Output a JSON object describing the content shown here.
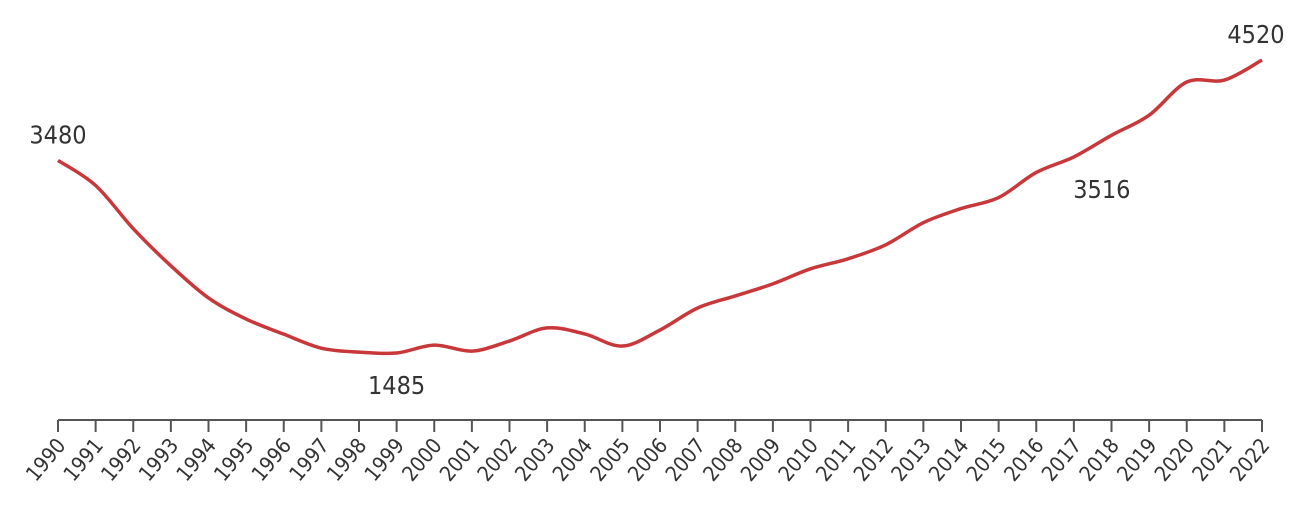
{
  "chart_data": {
    "type": "line",
    "x": [
      1990,
      1991,
      1992,
      1993,
      1994,
      1995,
      1996,
      1997,
      1998,
      1999,
      2000,
      2001,
      2002,
      2003,
      2004,
      2005,
      2006,
      2007,
      2008,
      2009,
      2010,
      2011,
      2012,
      2013,
      2014,
      2015,
      2016,
      2017,
      2018,
      2019,
      2020,
      2021,
      2022
    ],
    "values": [
      3480,
      3220,
      2773,
      2388,
      2055,
      1837,
      1680,
      1535,
      1494,
      1485,
      1567,
      1505,
      1609,
      1745,
      1682,
      1557,
      1723,
      1951,
      2076,
      2201,
      2357,
      2461,
      2606,
      2835,
      2981,
      3095,
      3355,
      3516,
      3740,
      3948,
      4292,
      4312,
      4520
    ],
    "value_labels": [
      "3480",
      null,
      null,
      null,
      null,
      null,
      null,
      null,
      null,
      "1485",
      null,
      null,
      null,
      null,
      null,
      null,
      null,
      null,
      null,
      null,
      null,
      null,
      null,
      null,
      null,
      null,
      null,
      "3516",
      null,
      null,
      null,
      null,
      "4520"
    ],
    "color": "#c8373a"
  }
}
